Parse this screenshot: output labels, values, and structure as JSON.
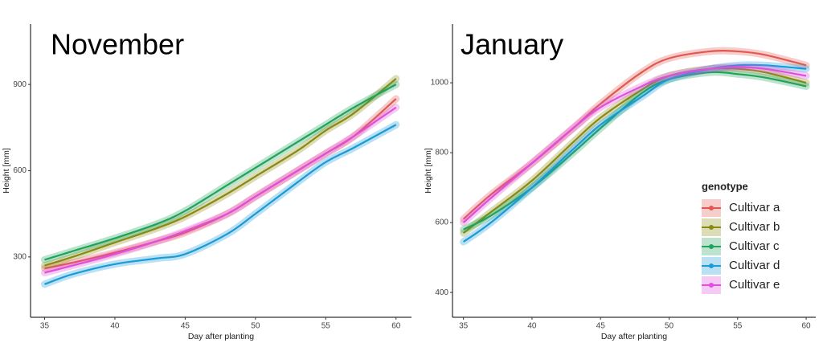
{
  "chart_data": [
    {
      "type": "line",
      "title": "November",
      "x_label": "Day after planting",
      "y_label": "Height [mm]",
      "x": [
        35,
        37,
        40,
        43,
        45,
        48,
        50,
        53,
        55,
        57,
        60
      ],
      "xlim": [
        34,
        61.1
      ],
      "ylim": [
        90,
        1110
      ],
      "xticks": [
        35,
        40,
        45,
        50,
        55,
        60
      ],
      "yticks": [
        300,
        600,
        900
      ],
      "series": [
        {
          "color": "#e0584f",
          "values": [
            260,
            280,
            315,
            355,
            385,
            450,
            510,
            600,
            660,
            720,
            850
          ]
        },
        {
          "color": "#8a8a12",
          "values": [
            270,
            300,
            350,
            400,
            440,
            520,
            580,
            670,
            740,
            800,
            920
          ]
        },
        {
          "color": "#1ea35a",
          "values": [
            290,
            320,
            365,
            415,
            460,
            550,
            610,
            700,
            760,
            820,
            900
          ]
        },
        {
          "color": "#1a9ad6",
          "values": [
            205,
            240,
            275,
            295,
            310,
            380,
            450,
            560,
            630,
            680,
            760
          ]
        },
        {
          "color": "#df4fdc",
          "values": [
            245,
            270,
            310,
            355,
            390,
            450,
            510,
            600,
            660,
            720,
            820
          ]
        }
      ]
    },
    {
      "type": "line",
      "title": "January",
      "x_label": "Day after planting",
      "y_label": "Height [mm]",
      "x": [
        35,
        37,
        40,
        43,
        45,
        48,
        50,
        53,
        55,
        57,
        60
      ],
      "xlim": [
        34.2,
        60.7
      ],
      "ylim": [
        329,
        1168
      ],
      "xticks": [
        35,
        40,
        45,
        50,
        55,
        60
      ],
      "yticks": [
        400,
        600,
        800,
        1000
      ],
      "legend": "bottom-right",
      "legend_title": "genotype",
      "series": [
        {
          "name": "Cultivar a",
          "color": "#e0584f",
          "values": [
            610,
            680,
            770,
            870,
            940,
            1030,
            1070,
            1090,
            1090,
            1080,
            1050
          ]
        },
        {
          "name": "Cultivar b",
          "color": "#8a8a12",
          "values": [
            570,
            630,
            720,
            830,
            900,
            980,
            1020,
            1040,
            1040,
            1030,
            1000
          ]
        },
        {
          "name": "Cultivar c",
          "color": "#1ea35a",
          "values": [
            580,
            620,
            700,
            800,
            870,
            970,
            1010,
            1030,
            1025,
            1015,
            990
          ]
        },
        {
          "name": "Cultivar d",
          "color": "#1a9ad6",
          "values": [
            545,
            600,
            700,
            810,
            880,
            960,
            1010,
            1040,
            1050,
            1050,
            1040
          ]
        },
        {
          "name": "Cultivar e",
          "color": "#df4fdc",
          "values": [
            600,
            670,
            770,
            870,
            930,
            990,
            1020,
            1040,
            1045,
            1040,
            1020
          ]
        }
      ]
    }
  ]
}
